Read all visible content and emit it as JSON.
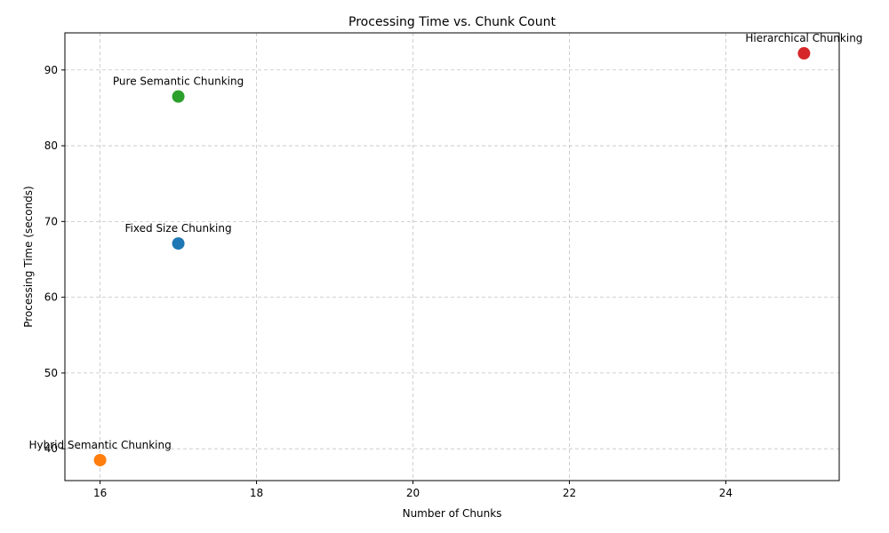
{
  "chart_data": {
    "type": "scatter",
    "title": "Processing Time vs. Chunk Count",
    "xlabel": "Number of Chunks",
    "ylabel": "Processing Time (seconds)",
    "xlim": [
      15.55,
      25.45
    ],
    "ylim": [
      35.8,
      94.9
    ],
    "xticks": [
      16,
      18,
      20,
      22,
      24
    ],
    "yticks": [
      40,
      50,
      60,
      70,
      80,
      90
    ],
    "grid": true,
    "points": [
      {
        "label": "Fixed Size Chunking",
        "x": 17,
        "y": 67.1,
        "color": "#1f77b4"
      },
      {
        "label": "Hybrid Semantic Chunking",
        "x": 16,
        "y": 38.5,
        "color": "#ff7f0e"
      },
      {
        "label": "Pure Semantic Chunking",
        "x": 17,
        "y": 86.5,
        "color": "#2ca02c"
      },
      {
        "label": "Hierarchical Chunking",
        "x": 25,
        "y": 92.2,
        "color": "#d62728"
      }
    ]
  }
}
